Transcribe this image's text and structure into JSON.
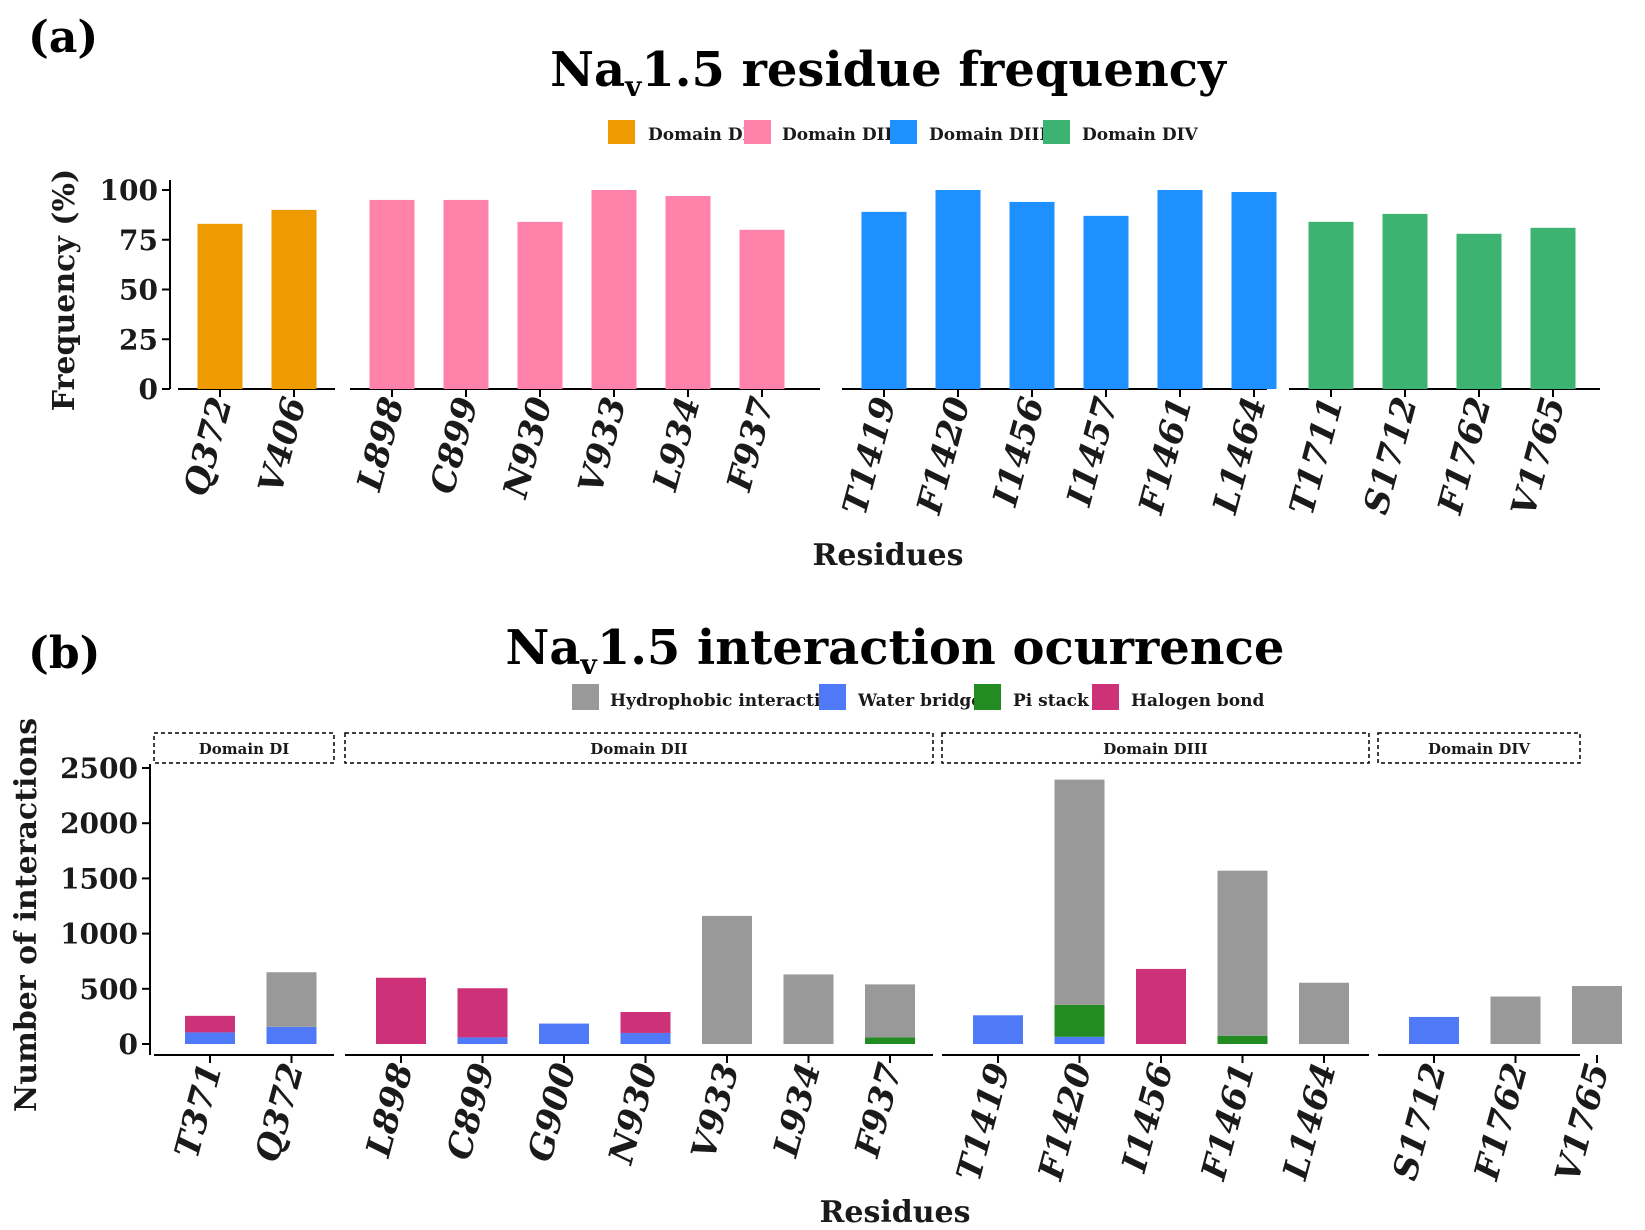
{
  "chart_data": [
    {
      "type": "bar",
      "panel_label": "(a)",
      "title_main": "Na",
      "title_sub": "v",
      "title_rest": "1.5 residue frequency",
      "xlabel": "Residues",
      "ylabel": "Frequency (%)",
      "ylim": [
        0,
        100
      ],
      "yticks": [
        0,
        25,
        50,
        75,
        100
      ],
      "legend": [
        {
          "name": "Domain DI",
          "color": "#EE9A00"
        },
        {
          "name": "Domain DII",
          "color": "#FF82AB"
        },
        {
          "name": "Domain DIII",
          "color": "#1E90FF"
        },
        {
          "name": "Domain DIV",
          "color": "#3CB371"
        }
      ],
      "groups": [
        {
          "domain": "Domain DI",
          "color": "#EE9A00",
          "categories": [
            "Q372",
            "V406"
          ],
          "values": [
            83,
            90
          ]
        },
        {
          "domain": "Domain DII",
          "color": "#FF82AB",
          "categories": [
            "L898",
            "C899",
            "N930",
            "V933",
            "L934",
            "F937"
          ],
          "values": [
            95,
            95,
            84,
            100,
            97,
            80
          ]
        },
        {
          "domain": "Domain DIII",
          "color": "#1E90FF",
          "categories": [
            "T1419",
            "F1420",
            "I1456",
            "I1457",
            "F1461",
            "L1464"
          ],
          "values": [
            89,
            100,
            94,
            87,
            100,
            99
          ]
        },
        {
          "domain": "Domain DIV",
          "color": "#3CB371",
          "categories": [
            "T1711",
            "S1712",
            "F1762",
            "V1765"
          ],
          "values": [
            84,
            88,
            78,
            81
          ]
        }
      ]
    },
    {
      "type": "stacked-bar",
      "panel_label": "(b)",
      "title_main": "Na",
      "title_sub": "v",
      "title_rest": "1.5 interaction ocurrence",
      "xlabel": "Residues",
      "ylabel": "Number of interactions",
      "ylim": [
        0,
        2500
      ],
      "yticks": [
        0,
        500,
        1000,
        1500,
        2000,
        2500
      ],
      "legend": [
        {
          "name": "Hydrophobic interaction",
          "color": "#999999"
        },
        {
          "name": "Water bridge",
          "color": "#4F79F7"
        },
        {
          "name": "Pi stack",
          "color": "#228B22"
        },
        {
          "name": "Halogen bond",
          "color": "#CD3278"
        }
      ],
      "groups": [
        {
          "domain": "Domain DI",
          "bars": [
            {
              "residue": "T371",
              "segments": {
                "water_bridge": 105,
                "pi_stack": 0,
                "halogen_bond": 150,
                "hydrophobic": 0
              }
            },
            {
              "residue": "Q372",
              "segments": {
                "water_bridge": 155,
                "pi_stack": 0,
                "halogen_bond": 0,
                "hydrophobic": 495
              }
            }
          ]
        },
        {
          "domain": "Domain DII",
          "bars": [
            {
              "residue": "L898",
              "segments": {
                "water_bridge": 0,
                "pi_stack": 0,
                "halogen_bond": 600,
                "hydrophobic": 0
              }
            },
            {
              "residue": "C899",
              "segments": {
                "water_bridge": 60,
                "pi_stack": 0,
                "halogen_bond": 445,
                "hydrophobic": 0
              }
            },
            {
              "residue": "G900",
              "segments": {
                "water_bridge": 185,
                "pi_stack": 0,
                "halogen_bond": 0,
                "hydrophobic": 0
              }
            },
            {
              "residue": "N930",
              "segments": {
                "water_bridge": 100,
                "pi_stack": 0,
                "halogen_bond": 190,
                "hydrophobic": 0
              }
            },
            {
              "residue": "V933",
              "segments": {
                "water_bridge": 0,
                "pi_stack": 0,
                "halogen_bond": 0,
                "hydrophobic": 1160
              }
            },
            {
              "residue": "L934",
              "segments": {
                "water_bridge": 0,
                "pi_stack": 0,
                "halogen_bond": 0,
                "hydrophobic": 630
              }
            },
            {
              "residue": "F937",
              "segments": {
                "water_bridge": 0,
                "pi_stack": 60,
                "halogen_bond": 0,
                "hydrophobic": 480
              }
            }
          ]
        },
        {
          "domain": "Domain DIII",
          "bars": [
            {
              "residue": "T1419",
              "segments": {
                "water_bridge": 260,
                "pi_stack": 0,
                "halogen_bond": 0,
                "hydrophobic": 0
              }
            },
            {
              "residue": "F1420",
              "segments": {
                "water_bridge": 65,
                "pi_stack": 290,
                "halogen_bond": 0,
                "hydrophobic": 2040
              }
            },
            {
              "residue": "I1456",
              "segments": {
                "water_bridge": 0,
                "pi_stack": 0,
                "halogen_bond": 680,
                "hydrophobic": 0
              }
            },
            {
              "residue": "F1461",
              "segments": {
                "water_bridge": 0,
                "pi_stack": 75,
                "halogen_bond": 0,
                "hydrophobic": 1495
              }
            },
            {
              "residue": "L1464",
              "segments": {
                "water_bridge": 0,
                "pi_stack": 0,
                "halogen_bond": 0,
                "hydrophobic": 555
              }
            }
          ]
        },
        {
          "domain": "Domain DIV",
          "bars": [
            {
              "residue": "S1712",
              "segments": {
                "water_bridge": 245,
                "pi_stack": 0,
                "halogen_bond": 0,
                "hydrophobic": 0
              }
            },
            {
              "residue": "F1762",
              "segments": {
                "water_bridge": 0,
                "pi_stack": 0,
                "halogen_bond": 0,
                "hydrophobic": 430
              }
            },
            {
              "residue": "V1765",
              "segments": {
                "water_bridge": 0,
                "pi_stack": 0,
                "halogen_bond": 0,
                "hydrophobic": 525
              }
            }
          ]
        }
      ]
    }
  ]
}
